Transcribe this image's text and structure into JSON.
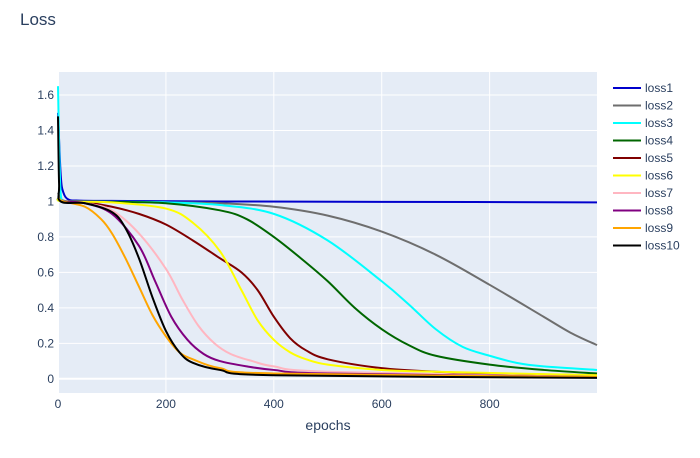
{
  "chart_data": {
    "type": "line",
    "title": "Loss",
    "xlabel": "epochs",
    "ylabel": "",
    "xlim": [
      0,
      999
    ],
    "ylim": [
      -0.08,
      1.73
    ],
    "xticks": [
      0,
      200,
      400,
      600,
      800
    ],
    "yticks": [
      0,
      0.2,
      0.4,
      0.6,
      0.8,
      1,
      1.2,
      1.4,
      1.6
    ],
    "ytick_labels": [
      "0",
      "0.2",
      "0.4",
      "0.6",
      "0.8",
      "1",
      "1.2",
      "1.4",
      "1.6"
    ],
    "grid": true,
    "legend_position": "right",
    "plot_background": "#e5ecf6",
    "series": [
      {
        "name": "loss1",
        "color": "#0000cc",
        "points": [
          [
            0,
            1.5
          ],
          [
            5,
            1.15
          ],
          [
            10,
            1.05
          ],
          [
            20,
            1.01
          ],
          [
            40,
            1.005
          ],
          [
            100,
            1.003
          ],
          [
            300,
            1.0
          ],
          [
            600,
            0.998
          ],
          [
            999,
            0.995
          ]
        ]
      },
      {
        "name": "loss2",
        "color": "#6e6e6e",
        "points": [
          [
            0,
            1.05
          ],
          [
            10,
            1.005
          ],
          [
            50,
            1.0
          ],
          [
            200,
            0.995
          ],
          [
            300,
            0.99
          ],
          [
            400,
            0.97
          ],
          [
            500,
            0.92
          ],
          [
            600,
            0.83
          ],
          [
            700,
            0.7
          ],
          [
            800,
            0.53
          ],
          [
            900,
            0.35
          ],
          [
            950,
            0.26
          ],
          [
            999,
            0.19
          ]
        ]
      },
      {
        "name": "loss3",
        "color": "#00ffff",
        "points": [
          [
            0,
            1.65
          ],
          [
            3,
            1.2
          ],
          [
            6,
            1.02
          ],
          [
            15,
            1.0
          ],
          [
            100,
            0.998
          ],
          [
            200,
            0.995
          ],
          [
            300,
            0.98
          ],
          [
            400,
            0.93
          ],
          [
            500,
            0.78
          ],
          [
            600,
            0.55
          ],
          [
            650,
            0.42
          ],
          [
            700,
            0.28
          ],
          [
            750,
            0.18
          ],
          [
            800,
            0.13
          ],
          [
            850,
            0.09
          ],
          [
            900,
            0.07
          ],
          [
            999,
            0.05
          ]
        ]
      },
      {
        "name": "loss4",
        "color": "#006600",
        "points": [
          [
            0,
            1.02
          ],
          [
            10,
            1.0
          ],
          [
            100,
            0.998
          ],
          [
            200,
            0.99
          ],
          [
            300,
            0.95
          ],
          [
            350,
            0.9
          ],
          [
            400,
            0.8
          ],
          [
            450,
            0.68
          ],
          [
            500,
            0.55
          ],
          [
            550,
            0.4
          ],
          [
            600,
            0.28
          ],
          [
            650,
            0.19
          ],
          [
            700,
            0.13
          ],
          [
            800,
            0.08
          ],
          [
            900,
            0.05
          ],
          [
            999,
            0.03
          ]
        ]
      },
      {
        "name": "loss5",
        "color": "#800000",
        "points": [
          [
            0,
            1.02
          ],
          [
            10,
            1.0
          ],
          [
            50,
            0.995
          ],
          [
            100,
            0.97
          ],
          [
            150,
            0.93
          ],
          [
            200,
            0.87
          ],
          [
            250,
            0.78
          ],
          [
            300,
            0.68
          ],
          [
            340,
            0.6
          ],
          [
            370,
            0.5
          ],
          [
            400,
            0.35
          ],
          [
            430,
            0.23
          ],
          [
            460,
            0.16
          ],
          [
            500,
            0.11
          ],
          [
            600,
            0.06
          ],
          [
            700,
            0.04
          ],
          [
            800,
            0.03
          ],
          [
            999,
            0.02
          ]
        ]
      },
      {
        "name": "loss6",
        "color": "#ffff00",
        "points": [
          [
            0,
            1.02
          ],
          [
            10,
            1.0
          ],
          [
            100,
            0.995
          ],
          [
            200,
            0.96
          ],
          [
            250,
            0.88
          ],
          [
            300,
            0.72
          ],
          [
            340,
            0.5
          ],
          [
            370,
            0.33
          ],
          [
            400,
            0.22
          ],
          [
            430,
            0.15
          ],
          [
            460,
            0.11
          ],
          [
            500,
            0.08
          ],
          [
            600,
            0.05
          ],
          [
            700,
            0.04
          ],
          [
            999,
            0.02
          ]
        ]
      },
      {
        "name": "loss7",
        "color": "#ffb6c1",
        "points": [
          [
            0,
            1.02
          ],
          [
            10,
            1.0
          ],
          [
            50,
            0.99
          ],
          [
            100,
            0.95
          ],
          [
            150,
            0.82
          ],
          [
            200,
            0.62
          ],
          [
            230,
            0.45
          ],
          [
            260,
            0.3
          ],
          [
            290,
            0.2
          ],
          [
            320,
            0.14
          ],
          [
            360,
            0.1
          ],
          [
            400,
            0.07
          ],
          [
            500,
            0.04
          ],
          [
            999,
            0.01
          ]
        ]
      },
      {
        "name": "loss8",
        "color": "#800080",
        "points": [
          [
            0,
            1.02
          ],
          [
            10,
            1.0
          ],
          [
            50,
            0.99
          ],
          [
            100,
            0.93
          ],
          [
            150,
            0.75
          ],
          [
            180,
            0.55
          ],
          [
            210,
            0.35
          ],
          [
            240,
            0.22
          ],
          [
            270,
            0.14
          ],
          [
            300,
            0.1
          ],
          [
            350,
            0.07
          ],
          [
            400,
            0.05
          ],
          [
            500,
            0.03
          ],
          [
            999,
            0.01
          ]
        ]
      },
      {
        "name": "loss9",
        "color": "#ffa500",
        "points": [
          [
            0,
            1.02
          ],
          [
            10,
            1.0
          ],
          [
            50,
            0.97
          ],
          [
            80,
            0.9
          ],
          [
            100,
            0.82
          ],
          [
            125,
            0.68
          ],
          [
            150,
            0.52
          ],
          [
            175,
            0.36
          ],
          [
            200,
            0.24
          ],
          [
            225,
            0.15
          ],
          [
            250,
            0.11
          ],
          [
            300,
            0.06
          ],
          [
            400,
            0.03
          ],
          [
            999,
            0.01
          ]
        ]
      },
      {
        "name": "loss10",
        "color": "#000000",
        "points": [
          [
            0,
            1.48
          ],
          [
            2,
            1.1
          ],
          [
            5,
            1.0
          ],
          [
            50,
            0.99
          ],
          [
            100,
            0.94
          ],
          [
            125,
            0.85
          ],
          [
            150,
            0.68
          ],
          [
            175,
            0.46
          ],
          [
            200,
            0.27
          ],
          [
            225,
            0.15
          ],
          [
            250,
            0.09
          ],
          [
            300,
            0.05
          ],
          [
            400,
            0.02
          ],
          [
            999,
            0.005
          ]
        ]
      }
    ]
  }
}
